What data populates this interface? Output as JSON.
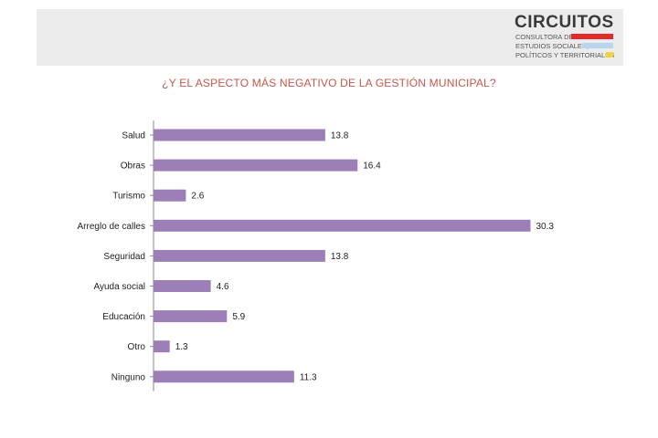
{
  "logo": {
    "name": "CIRCUITOS",
    "line1": "CONSULTORA DE",
    "line2": "ESTUDIOS SOCIALES,",
    "line3": "POLÍTICOS Y TERRITORIALES",
    "colors": [
      "#e32b2b",
      "#b9d4ef",
      "#f2d43a"
    ]
  },
  "chart_data": {
    "type": "bar",
    "orientation": "horizontal",
    "title": "¿Y EL ASPECTO MÁS NEGATIVO DE LA GESTIÓN MUNICIPAL?",
    "categories": [
      "Salud",
      "Obras",
      "Turismo",
      "Arreglo de calles",
      "Seguridad",
      "Ayuda social",
      "Educación",
      "Otro",
      "Ninguno"
    ],
    "values": [
      13.8,
      16.4,
      2.6,
      30.3,
      13.8,
      4.6,
      5.9,
      1.3,
      11.3
    ],
    "value_labels": [
      "13.8",
      "16.4",
      "2.6",
      "30.3",
      "13.8",
      "4.6",
      "5.9",
      "1.3",
      "11.3"
    ],
    "xlim": [
      0,
      31
    ],
    "grid": false,
    "bar_color": "#9b7fb6",
    "axis_color": "#8a8a8a"
  }
}
